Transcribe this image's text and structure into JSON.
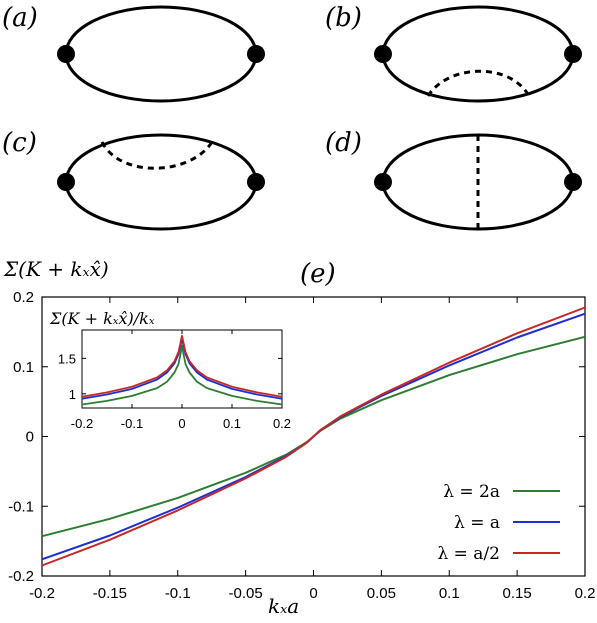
{
  "diagrams": {
    "labels": [
      "(a)",
      "(b)",
      "(c)",
      "(d)"
    ]
  },
  "panel_e_label": "(e)",
  "main_ylabel": "Σ(K + kₓx̂)",
  "main_xlabel": "kₓa",
  "inset_title": "Σ(K + kₓx̂)/kₓ",
  "chart_data": [
    {
      "type": "line",
      "title": "(e)",
      "xlabel": "kₓa",
      "ylabel": "Σ(K + kₓx̂)",
      "xlim": [
        -0.2,
        0.2
      ],
      "ylim": [
        -0.2,
        0.2
      ],
      "xticks": [
        "-0.2",
        "-0.15",
        "-0.1",
        "-0.05",
        "0",
        "0.05",
        "0.1",
        "0.15",
        "0.2"
      ],
      "yticks": [
        "-0.2",
        "-0.1",
        "0",
        "0.1",
        "0.2"
      ],
      "legend_position": "bottom-right",
      "series": [
        {
          "name": "λ = 2a",
          "color": "#2e7d32",
          "x": [
            -0.2,
            -0.15,
            -0.1,
            -0.05,
            -0.02,
            -0.005,
            0,
            0.005,
            0.02,
            0.05,
            0.1,
            0.15,
            0.2
          ],
          "y": [
            -0.143,
            -0.118,
            -0.088,
            -0.052,
            -0.026,
            -0.008,
            0,
            0.008,
            0.026,
            0.052,
            0.088,
            0.118,
            0.143
          ]
        },
        {
          "name": "λ = a",
          "color": "#1f2fcf",
          "x": [
            -0.2,
            -0.15,
            -0.1,
            -0.05,
            -0.02,
            -0.005,
            0,
            0.005,
            0.02,
            0.05,
            0.1,
            0.15,
            0.2
          ],
          "y": [
            -0.176,
            -0.142,
            -0.102,
            -0.058,
            -0.028,
            -0.009,
            0,
            0.009,
            0.028,
            0.058,
            0.102,
            0.142,
            0.176
          ]
        },
        {
          "name": "λ = a/2",
          "color": "#c62828",
          "x": [
            -0.2,
            -0.15,
            -0.1,
            -0.05,
            -0.02,
            -0.005,
            0,
            0.005,
            0.02,
            0.05,
            0.1,
            0.15,
            0.2
          ],
          "y": [
            -0.185,
            -0.148,
            -0.106,
            -0.06,
            -0.029,
            -0.009,
            0,
            0.009,
            0.029,
            0.06,
            0.106,
            0.148,
            0.185
          ]
        }
      ]
    },
    {
      "type": "line",
      "title": "Σ(K + kₓx̂)/kₓ",
      "xlim": [
        -0.2,
        0.2
      ],
      "ylim": [
        0.8,
        1.9
      ],
      "xticks": [
        "-0.2",
        "-0.1",
        "0",
        "0.1",
        "0.2"
      ],
      "yticks": [
        "1",
        "1.5"
      ],
      "series": [
        {
          "name": "λ = 2a",
          "color": "#2e7d32",
          "x": [
            -0.2,
            -0.15,
            -0.1,
            -0.05,
            -0.03,
            -0.015,
            -0.007,
            -0.003,
            0,
            0.003,
            0.007,
            0.015,
            0.03,
            0.05,
            0.1,
            0.15,
            0.2
          ],
          "y": [
            0.85,
            0.9,
            0.97,
            1.08,
            1.17,
            1.3,
            1.42,
            1.56,
            1.68,
            1.56,
            1.42,
            1.3,
            1.17,
            1.08,
            0.97,
            0.9,
            0.85
          ]
        },
        {
          "name": "λ = a",
          "color": "#1f2fcf",
          "x": [
            -0.2,
            -0.15,
            -0.1,
            -0.05,
            -0.03,
            -0.015,
            -0.007,
            -0.003,
            0,
            0.003,
            0.007,
            0.015,
            0.03,
            0.05,
            0.1,
            0.15,
            0.2
          ],
          "y": [
            0.93,
            0.99,
            1.07,
            1.2,
            1.3,
            1.43,
            1.56,
            1.68,
            1.78,
            1.68,
            1.56,
            1.43,
            1.3,
            1.2,
            1.07,
            0.99,
            0.93
          ]
        },
        {
          "name": "λ = a/2",
          "color": "#c62828",
          "x": [
            -0.2,
            -0.15,
            -0.1,
            -0.05,
            -0.03,
            -0.015,
            -0.007,
            -0.003,
            0,
            0.003,
            0.007,
            0.015,
            0.03,
            0.05,
            0.1,
            0.15,
            0.2
          ],
          "y": [
            0.96,
            1.02,
            1.1,
            1.23,
            1.33,
            1.46,
            1.59,
            1.72,
            1.82,
            1.72,
            1.59,
            1.46,
            1.33,
            1.23,
            1.1,
            1.02,
            0.96
          ]
        }
      ]
    }
  ]
}
